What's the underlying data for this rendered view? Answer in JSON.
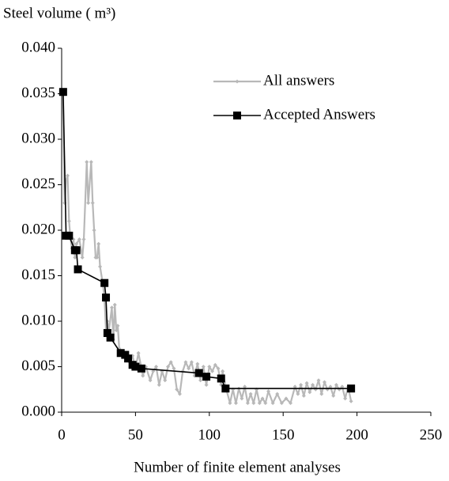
{
  "chart_data": {
    "type": "line",
    "y_label": "Steel volume ( m³)",
    "x_label": "Number of finite element analyses",
    "xlim": [
      0,
      250
    ],
    "xticks": [
      0,
      50,
      100,
      150,
      200,
      250
    ],
    "ylim": [
      0,
      0.04
    ],
    "yticks": [
      {
        "value": 0,
        "label": "0.000"
      },
      {
        "value": 0.005,
        "label": "0.005"
      },
      {
        "value": 0.01,
        "label": "0.010"
      },
      {
        "value": 0.015,
        "label": "0.015"
      },
      {
        "value": 0.02,
        "label": "0.020"
      },
      {
        "value": 0.025,
        "label": "0.025"
      },
      {
        "value": 0.03,
        "label": "0.030"
      },
      {
        "value": 0.035,
        "label": "0.035"
      },
      {
        "value": 0.04,
        "label": "0.040"
      }
    ],
    "grid": false,
    "legend": "upper right",
    "series": [
      {
        "name": "All answers",
        "color": "#b8b8b8",
        "marker": "diamond",
        "x": [
          1,
          2,
          3,
          4,
          5,
          6,
          7,
          8,
          9,
          10,
          12,
          14,
          15,
          17,
          18,
          20,
          21,
          22,
          23,
          24,
          25,
          26,
          28,
          29,
          30,
          31,
          32,
          34,
          35,
          36,
          37,
          38,
          39,
          41,
          44,
          46,
          48,
          50,
          52,
          55,
          57,
          60,
          62,
          64,
          66,
          68,
          70,
          72,
          74,
          76,
          78,
          80,
          82,
          84,
          86,
          88,
          90,
          92,
          94,
          96,
          98,
          100,
          102,
          104,
          106,
          108,
          109,
          111,
          114,
          116,
          118,
          120,
          122,
          124,
          126,
          128,
          130,
          132,
          134,
          136,
          138,
          140,
          143,
          146,
          149,
          152,
          155,
          158,
          160,
          162,
          164,
          166,
          168,
          170,
          172,
          174,
          176,
          178,
          180,
          182,
          184,
          186,
          188,
          190,
          192,
          194,
          196
        ],
        "values": [
          0.035,
          0.023,
          0.0255,
          0.026,
          0.021,
          0.019,
          0.018,
          0.019,
          0.017,
          0.0185,
          0.019,
          0.017,
          0.019,
          0.0275,
          0.023,
          0.0275,
          0.023,
          0.02,
          0.017,
          0.017,
          0.0185,
          0.016,
          0.014,
          0.0125,
          0.009,
          0.01,
          0.009,
          0.0115,
          0.008,
          0.0118,
          0.009,
          0.0095,
          0.007,
          0.0065,
          0.006,
          0.0055,
          0.0062,
          0.0048,
          0.0065,
          0.004,
          0.005,
          0.0035,
          0.0045,
          0.005,
          0.003,
          0.0045,
          0.0035,
          0.005,
          0.0055,
          0.0048,
          0.0025,
          0.002,
          0.0045,
          0.0055,
          0.0048,
          0.0055,
          0.004,
          0.0053,
          0.0035,
          0.005,
          0.003,
          0.005,
          0.0045,
          0.0052,
          0.0048,
          0.003,
          0.0045,
          0.0028,
          0.001,
          0.0025,
          0.001,
          0.0026,
          0.0015,
          0.0028,
          0.001,
          0.002,
          0.001,
          0.0025,
          0.001,
          0.0015,
          0.001,
          0.0023,
          0.001,
          0.002,
          0.001,
          0.0015,
          0.001,
          0.0028,
          0.002,
          0.003,
          0.0018,
          0.0032,
          0.0022,
          0.003,
          0.0025,
          0.0035,
          0.002,
          0.0033,
          0.0025,
          0.0028,
          0.0018,
          0.003,
          0.0025,
          0.0028,
          0.0015,
          0.0028,
          0.0012
        ]
      },
      {
        "name": "Accepted Answers",
        "color": "#000000",
        "marker": "square",
        "x": [
          1,
          3,
          5,
          9,
          10,
          11,
          29,
          30,
          31,
          33,
          40,
          43,
          45,
          48,
          50,
          54,
          93,
          98,
          108,
          111,
          196
        ],
        "values": [
          0.0352,
          0.0194,
          0.0194,
          0.0178,
          0.0178,
          0.0157,
          0.0142,
          0.0126,
          0.0087,
          0.0082,
          0.0065,
          0.0063,
          0.0059,
          0.0052,
          0.005,
          0.0048,
          0.0043,
          0.0039,
          0.0037,
          0.0026,
          0.0026
        ]
      }
    ]
  }
}
